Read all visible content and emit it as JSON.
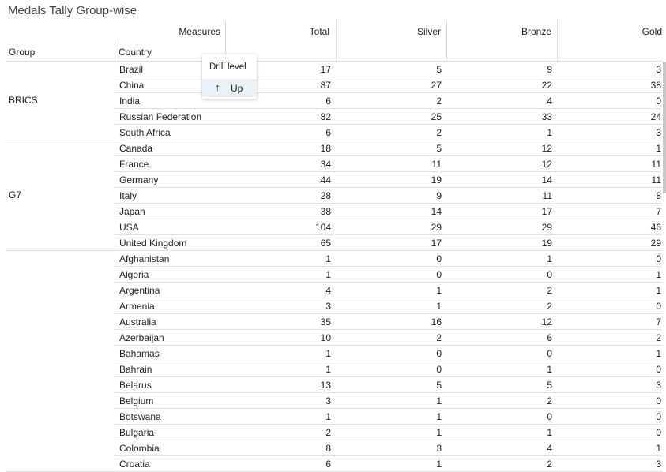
{
  "title": "Medals Tally Group-wise",
  "headers": {
    "measures": "Measures",
    "group": "Group",
    "country": "Country",
    "total": "Total",
    "silver": "Silver",
    "bronze": "Bronze",
    "gold": "Gold"
  },
  "popup": {
    "title": "Drill level",
    "up_label": "Up",
    "up_icon": "arrow-up-icon"
  },
  "groups": [
    {
      "name": "BRICS",
      "rows": [
        [
          "Brazil",
          17,
          5,
          9,
          3
        ],
        [
          "China",
          87,
          27,
          22,
          38
        ],
        [
          "India",
          6,
          2,
          4,
          0
        ],
        [
          "Russian Federation",
          82,
          25,
          33,
          24
        ],
        [
          "South Africa",
          6,
          2,
          1,
          3
        ]
      ]
    },
    {
      "name": "G7",
      "rows": [
        [
          "Canada",
          18,
          5,
          12,
          1
        ],
        [
          "France",
          34,
          11,
          12,
          11
        ],
        [
          "Germany",
          44,
          19,
          14,
          11
        ],
        [
          "Italy",
          28,
          9,
          11,
          8
        ],
        [
          "Japan",
          38,
          14,
          17,
          7
        ],
        [
          "USA",
          104,
          29,
          29,
          46
        ],
        [
          "United Kingdom",
          65,
          17,
          19,
          29
        ]
      ]
    },
    {
      "name": "",
      "rows": [
        [
          "Afghanistan",
          1,
          0,
          1,
          0
        ],
        [
          "Algeria",
          1,
          0,
          0,
          1
        ],
        [
          "Argentina",
          4,
          1,
          2,
          1
        ],
        [
          "Armenia",
          3,
          1,
          2,
          0
        ],
        [
          "Australia",
          35,
          16,
          12,
          7
        ],
        [
          "Azerbaijan",
          10,
          2,
          6,
          2
        ],
        [
          "Bahamas",
          1,
          0,
          0,
          1
        ],
        [
          "Bahrain",
          1,
          0,
          1,
          0
        ],
        [
          "Belarus",
          13,
          5,
          5,
          3
        ],
        [
          "Belgium",
          3,
          1,
          2,
          0
        ],
        [
          "Botswana",
          1,
          1,
          0,
          0
        ],
        [
          "Bulgaria",
          2,
          1,
          1,
          0
        ],
        [
          "Colombia",
          8,
          3,
          4,
          1
        ],
        [
          "Croatia",
          6,
          1,
          2,
          3
        ]
      ]
    }
  ]
}
